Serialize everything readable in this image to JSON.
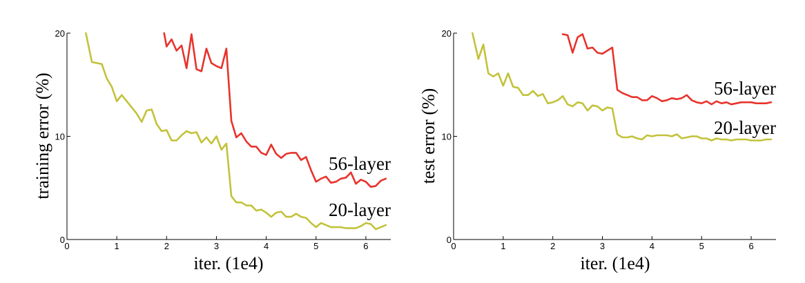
{
  "chart_data": [
    {
      "type": "line",
      "xlabel": "iter. (1e4)",
      "ylabel": "training error (%)",
      "xlim": [
        0,
        6.5
      ],
      "ylim": [
        0,
        20
      ],
      "xticks": [
        "0",
        "1",
        "2",
        "3",
        "4",
        "5",
        "6"
      ],
      "yticks": [
        "0",
        "10",
        "20"
      ],
      "grid": false,
      "series": [
        {
          "name": "56-layer",
          "color": "#e8322b",
          "x": [
            1.95,
            2.0,
            2.1,
            2.2,
            2.3,
            2.4,
            2.5,
            2.6,
            2.7,
            2.8,
            2.9,
            3.0,
            3.1,
            3.2,
            3.3,
            3.4,
            3.5,
            3.6,
            3.7,
            3.8,
            3.9,
            4.0,
            4.1,
            4.2,
            4.3,
            4.4,
            4.5,
            4.6,
            4.7,
            4.8,
            4.9,
            5.0,
            5.1,
            5.2,
            5.3,
            5.4,
            5.5,
            5.6,
            5.7,
            5.8,
            5.9,
            6.0,
            6.1,
            6.2,
            6.3,
            6.4
          ],
          "values": [
            20.0,
            18.7,
            19.4,
            18.3,
            18.8,
            16.6,
            19.9,
            16.5,
            16.3,
            18.5,
            17.1,
            16.8,
            16.6,
            18.5,
            11.5,
            9.9,
            10.3,
            9.5,
            9.0,
            9.0,
            8.4,
            8.2,
            9.2,
            8.3,
            7.9,
            8.3,
            8.4,
            8.4,
            7.7,
            8.0,
            6.7,
            5.6,
            5.9,
            6.1,
            5.5,
            5.6,
            5.9,
            6.0,
            6.5,
            5.4,
            5.8,
            5.6,
            5.1,
            5.2,
            5.7,
            5.9
          ]
        },
        {
          "name": "20-layer",
          "color": "#c2c23a",
          "x": [
            0.38,
            0.5,
            0.6,
            0.7,
            0.8,
            0.9,
            1.0,
            1.1,
            1.2,
            1.3,
            1.4,
            1.5,
            1.6,
            1.7,
            1.8,
            1.9,
            2.0,
            2.1,
            2.2,
            2.3,
            2.4,
            2.5,
            2.6,
            2.7,
            2.8,
            2.9,
            3.0,
            3.1,
            3.2,
            3.3,
            3.4,
            3.5,
            3.6,
            3.7,
            3.8,
            3.9,
            4.0,
            4.1,
            4.2,
            4.3,
            4.4,
            4.5,
            4.6,
            4.7,
            4.8,
            4.9,
            5.0,
            5.1,
            5.2,
            5.3,
            5.4,
            5.5,
            5.6,
            5.7,
            5.8,
            5.9,
            6.0,
            6.1,
            6.2,
            6.3,
            6.4
          ],
          "values": [
            20.0,
            17.2,
            17.1,
            17.0,
            15.6,
            14.8,
            13.4,
            14.0,
            13.4,
            12.8,
            12.2,
            11.4,
            12.5,
            12.6,
            11.2,
            10.5,
            10.6,
            9.6,
            9.6,
            10.1,
            10.5,
            10.3,
            10.4,
            9.4,
            9.9,
            9.3,
            10.0,
            8.7,
            9.3,
            4.2,
            3.6,
            3.6,
            3.3,
            3.3,
            2.8,
            2.9,
            2.6,
            2.2,
            2.6,
            2.7,
            2.2,
            2.2,
            2.5,
            2.2,
            2.1,
            1.6,
            1.2,
            1.6,
            1.4,
            1.2,
            1.2,
            1.2,
            1.1,
            1.1,
            1.1,
            1.3,
            1.6,
            1.5,
            1.0,
            1.2,
            1.4
          ]
        }
      ]
    },
    {
      "type": "line",
      "xlabel": "iter. (1e4)",
      "ylabel": "test error (%)",
      "xlim": [
        0,
        6.5
      ],
      "ylim": [
        0,
        20
      ],
      "xticks": [
        "0",
        "1",
        "2",
        "3",
        "4",
        "5",
        "6"
      ],
      "yticks": [
        "0",
        "10",
        "20"
      ],
      "grid": false,
      "series": [
        {
          "name": "56-layer",
          "color": "#e8322b",
          "x": [
            2.2,
            2.3,
            2.4,
            2.5,
            2.6,
            2.7,
            2.8,
            2.9,
            3.0,
            3.1,
            3.2,
            3.3,
            3.4,
            3.5,
            3.6,
            3.7,
            3.8,
            3.9,
            4.0,
            4.1,
            4.2,
            4.3,
            4.4,
            4.5,
            4.6,
            4.7,
            4.8,
            4.9,
            5.0,
            5.1,
            5.2,
            5.3,
            5.4,
            5.5,
            5.6,
            5.7,
            5.8,
            5.9,
            6.0,
            6.1,
            6.2,
            6.3,
            6.4
          ],
          "values": [
            19.9,
            19.8,
            18.1,
            19.6,
            19.9,
            18.5,
            18.6,
            18.1,
            18.0,
            18.3,
            18.6,
            14.5,
            14.2,
            14.0,
            13.8,
            13.8,
            13.5,
            13.5,
            13.9,
            13.7,
            13.4,
            13.5,
            13.7,
            13.6,
            13.7,
            14.0,
            13.5,
            13.3,
            13.2,
            13.4,
            13.1,
            13.4,
            13.2,
            13.3,
            13.1,
            13.2,
            13.3,
            13.3,
            13.3,
            13.2,
            13.2,
            13.2,
            13.3
          ]
        },
        {
          "name": "20-layer",
          "color": "#c2c23a",
          "x": [
            0.38,
            0.5,
            0.6,
            0.7,
            0.8,
            0.9,
            1.0,
            1.1,
            1.2,
            1.3,
            1.4,
            1.5,
            1.6,
            1.7,
            1.8,
            1.9,
            2.0,
            2.1,
            2.2,
            2.3,
            2.4,
            2.5,
            2.6,
            2.7,
            2.8,
            2.9,
            3.0,
            3.1,
            3.2,
            3.3,
            3.4,
            3.5,
            3.6,
            3.7,
            3.8,
            3.9,
            4.0,
            4.1,
            4.2,
            4.3,
            4.4,
            4.5,
            4.6,
            4.7,
            4.8,
            4.9,
            5.0,
            5.1,
            5.2,
            5.3,
            5.4,
            5.5,
            5.6,
            5.7,
            5.8,
            5.9,
            6.0,
            6.1,
            6.2,
            6.3,
            6.4
          ],
          "values": [
            20.0,
            17.5,
            18.9,
            16.1,
            15.8,
            16.1,
            14.9,
            16.1,
            14.8,
            14.7,
            14.0,
            14.0,
            14.4,
            13.9,
            14.1,
            13.2,
            13.3,
            13.5,
            13.9,
            13.1,
            12.9,
            13.3,
            13.2,
            12.5,
            13.0,
            12.9,
            12.5,
            12.8,
            12.7,
            10.2,
            9.9,
            9.9,
            10.0,
            9.8,
            9.7,
            10.1,
            10.0,
            10.1,
            10.1,
            10.1,
            10.0,
            10.2,
            9.8,
            9.9,
            10.0,
            10.0,
            9.8,
            9.8,
            9.6,
            9.8,
            9.7,
            9.7,
            9.6,
            9.7,
            9.7,
            9.7,
            9.6,
            9.6,
            9.6,
            9.7,
            9.7
          ]
        }
      ]
    }
  ]
}
